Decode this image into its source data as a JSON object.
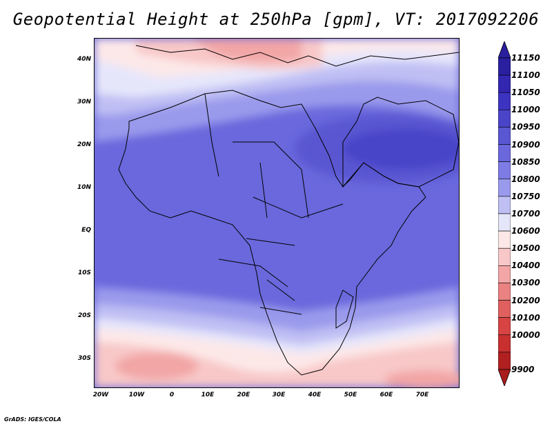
{
  "title": "Geopotential Height at 250hPa [gpm], VT: 2017092206",
  "footer": "GrADS: IGES/COLA",
  "map": {
    "region": "Africa",
    "variable": "Geopotential Height",
    "level": "250hPa",
    "units": "gpm",
    "valid_time": "2017092206",
    "lat_range": [
      -37,
      45
    ],
    "lon_range": [
      -25,
      78
    ],
    "y_ticks": [
      "40N",
      "30N",
      "20N",
      "10N",
      "EQ",
      "10S",
      "20S",
      "30S"
    ],
    "x_ticks": [
      "20W",
      "10W",
      "0",
      "10E",
      "20E",
      "30E",
      "40E",
      "50E",
      "60E",
      "70E"
    ]
  },
  "colorbar": {
    "labels": [
      "11150",
      "11100",
      "11050",
      "11000",
      "10950",
      "10900",
      "10850",
      "10800",
      "10750",
      "10700",
      "10600",
      "10500",
      "10400",
      "10300",
      "10200",
      "10100",
      "10000",
      "9900"
    ],
    "colors": [
      "#2a1f9e",
      "#3326b0",
      "#3c34c0",
      "#4a45c8",
      "#5a57d2",
      "#6a68dc",
      "#7d7ce4",
      "#9a9aec",
      "#bfbff4",
      "#e6e6fb",
      "#fde8e8",
      "#f8c8c8",
      "#f2a6a6",
      "#ea8282",
      "#e06060",
      "#d84444",
      "#c83030",
      "#b02020"
    ],
    "top_arrow_color": "#2a1f9e",
    "bottom_arrow_color": "#a81c1c"
  }
}
